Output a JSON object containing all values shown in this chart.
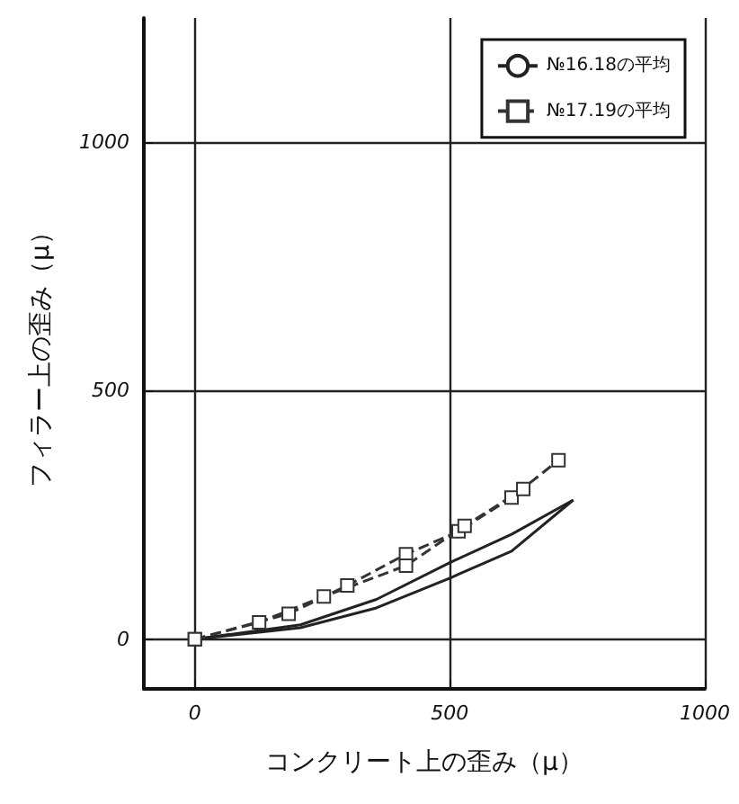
{
  "chart_data": {
    "type": "line",
    "xlabel": "コンクリート上の歪み（μ）",
    "ylabel": "フィラー上の歪み（μ）",
    "xlim": [
      -100,
      1000
    ],
    "xticks": [
      0,
      500,
      1000
    ],
    "ylim": [
      -100,
      1250
    ],
    "yticks": [
      0,
      500,
      1000
    ],
    "grid": true,
    "legend": "top right",
    "series": [
      {
        "name": "№16.18の平均",
        "color": "#222222",
        "marker": "none",
        "line_style": "solid",
        "x": [
          0,
          207,
          356,
          500,
          621,
          742
        ],
        "values": [
          0,
          29,
          80,
          154,
          211,
          280
        ]
      },
      {
        "color": "#222222",
        "marker": "none",
        "line_style": "solid",
        "x": [
          0,
          207,
          356,
          500,
          621,
          742
        ],
        "values": [
          0,
          23,
          63,
          123,
          177,
          280
        ]
      },
      {
        "name": "№17.19の平均",
        "color": "#333333",
        "marker": "square",
        "line_style": "dashed",
        "x": [
          0,
          184,
          299,
          414,
          517,
          621,
          713
        ],
        "values": [
          0,
          51,
          108,
          171,
          217,
          285,
          360
        ]
      },
      {
        "color": "#333333",
        "marker": "square",
        "line_style": "dashed",
        "x": [
          0,
          126,
          253,
          414,
          529,
          644
        ],
        "values": [
          0,
          34,
          86,
          148,
          228,
          302
        ]
      }
    ]
  }
}
